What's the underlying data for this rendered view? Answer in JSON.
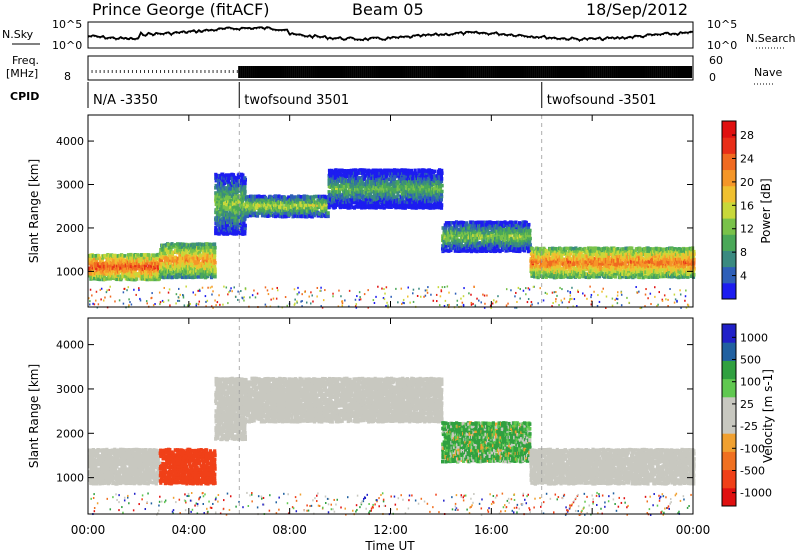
{
  "chart_data": {
    "type": "heatmap",
    "title": {
      "station": "Prince George (fitACF)",
      "beam": "Beam 05",
      "date": "18/Sep/2012"
    },
    "header_panels": {
      "nsky_label": "N.Sky",
      "nsearch_label": "N.Search",
      "nave_label": "Nave",
      "freq_label_line1": "Freq.",
      "freq_label_line2": "[MHz]",
      "cpid_label": "CPID",
      "noise_ticks_left": [
        "10^5",
        "10^0"
      ],
      "noise_ticks_right": [
        "10^5",
        "10^0"
      ],
      "freq_ticks_left": [
        "8"
      ],
      "nave_ticks_right": [
        "60",
        "0"
      ],
      "cpid_segments": [
        {
          "label": "N/A -3350",
          "start_hour": 0
        },
        {
          "label": "twofsound 3501",
          "start_hour": 6
        },
        {
          "label": "twofsound -3501",
          "start_hour": 18
        }
      ]
    },
    "x_axis": {
      "label": "Time UT",
      "range_hours": [
        0,
        24
      ],
      "tick_hours": [
        0,
        4,
        8,
        12,
        16,
        20,
        24
      ],
      "tick_labels": [
        "00:00",
        "04:00",
        "08:00",
        "12:00",
        "16:00",
        "20:00",
        "00:00"
      ],
      "markers_hours": [
        6,
        18
      ]
    },
    "panels": [
      {
        "id": "power",
        "ylabel": "Slant Range [km]",
        "ylim": [
          180,
          4600
        ],
        "yticks": [
          1000,
          2000,
          3000,
          4000
        ],
        "yticklabels": [
          "1000",
          "2000",
          "3000",
          "4000"
        ],
        "colorbar_label": "Power [dB]",
        "colorbar_ticks": [
          "4",
          "8",
          "12",
          "16",
          "20",
          "24",
          "28"
        ],
        "colorbar_colors": [
          "#1c1cf0",
          "#2e5fb8",
          "#3a8a80",
          "#4aa858",
          "#79c24a",
          "#c8d83a",
          "#f0c030",
          "#f59628",
          "#f06a20",
          "#e82e18",
          "#e01010"
        ],
        "echo_bands": [
          {
            "x0": 0.0,
            "x1": 2.8,
            "y0": 850,
            "y1": 1450,
            "value": 26
          },
          {
            "x0": 2.8,
            "x1": 5.0,
            "y0": 900,
            "y1": 1700,
            "value": 22
          },
          {
            "x0": 5.0,
            "x1": 6.2,
            "y0": 1900,
            "y1": 3300,
            "value": 14
          },
          {
            "x0": 6.2,
            "x1": 9.5,
            "y0": 2300,
            "y1": 2800,
            "value": 16
          },
          {
            "x0": 9.5,
            "x1": 14.0,
            "y0": 2500,
            "y1": 3400,
            "value": 12
          },
          {
            "x0": 14.0,
            "x1": 17.5,
            "y0": 1500,
            "y1": 2200,
            "value": 14
          },
          {
            "x0": 17.5,
            "x1": 24.0,
            "y0": 900,
            "y1": 1600,
            "value": 24
          }
        ]
      },
      {
        "id": "velocity",
        "ylabel": "Slant Range [km]",
        "ylim": [
          180,
          4600
        ],
        "yticks": [
          1000,
          2000,
          3000,
          4000
        ],
        "yticklabels": [
          "1000",
          "2000",
          "3000",
          "4000"
        ],
        "colorbar_label": "Velocity [m s-1]",
        "colorbar_ticks": [
          "1000",
          "500",
          "100",
          "25",
          "-25",
          "-100",
          "-500",
          "-1000"
        ],
        "colorbar_colors": [
          "#2020c8",
          "#2060a0",
          "#30a040",
          "#60c850",
          "#c8c8c0",
          "#c8c8c0",
          "#f0a030",
          "#f07020",
          "#f04018",
          "#e01010"
        ],
        "echo_bands": [
          {
            "x0": 0.0,
            "x1": 2.8,
            "y0": 900,
            "y1": 1700,
            "value": 0
          },
          {
            "x0": 2.8,
            "x1": 5.0,
            "y0": 900,
            "y1": 1700,
            "value": -500
          },
          {
            "x0": 5.0,
            "x1": 6.2,
            "y0": 1900,
            "y1": 3300,
            "value": 0
          },
          {
            "x0": 6.2,
            "x1": 14.0,
            "y0": 2300,
            "y1": 3300,
            "value": 0
          },
          {
            "x0": 14.0,
            "x1": 17.5,
            "y0": 1400,
            "y1": 2300,
            "value": 100
          },
          {
            "x0": 17.5,
            "x1": 24.0,
            "y0": 900,
            "y1": 1700,
            "value": 0
          }
        ]
      }
    ]
  }
}
